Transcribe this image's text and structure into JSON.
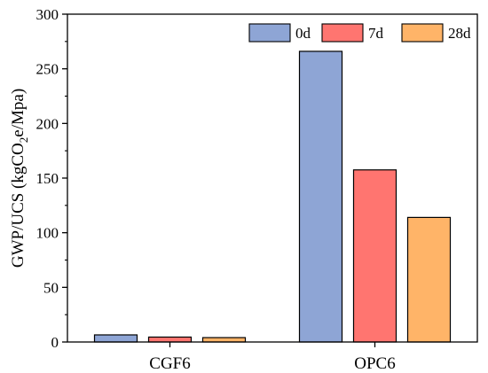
{
  "chart_data": {
    "type": "bar",
    "title": "",
    "xlabel": "",
    "ylabel": {
      "prefix": "GWP/UCS (kgCO",
      "subscript": "2",
      "suffix": "e/Mpa)"
    },
    "ylim": [
      0,
      300
    ],
    "yticks": [
      0,
      50,
      100,
      150,
      200,
      250,
      300
    ],
    "categories": [
      "CGF6",
      "OPC6"
    ],
    "series": [
      {
        "name": "0d",
        "values": [
          6.5,
          266
        ],
        "color": "#8ea5d5"
      },
      {
        "name": "7d",
        "values": [
          4.5,
          157.5
        ],
        "color": "#ff7570"
      },
      {
        "name": "28d",
        "values": [
          4,
          114
        ],
        "color": "#ffb468"
      }
    ],
    "legend_position": "top-right",
    "grid": false
  }
}
